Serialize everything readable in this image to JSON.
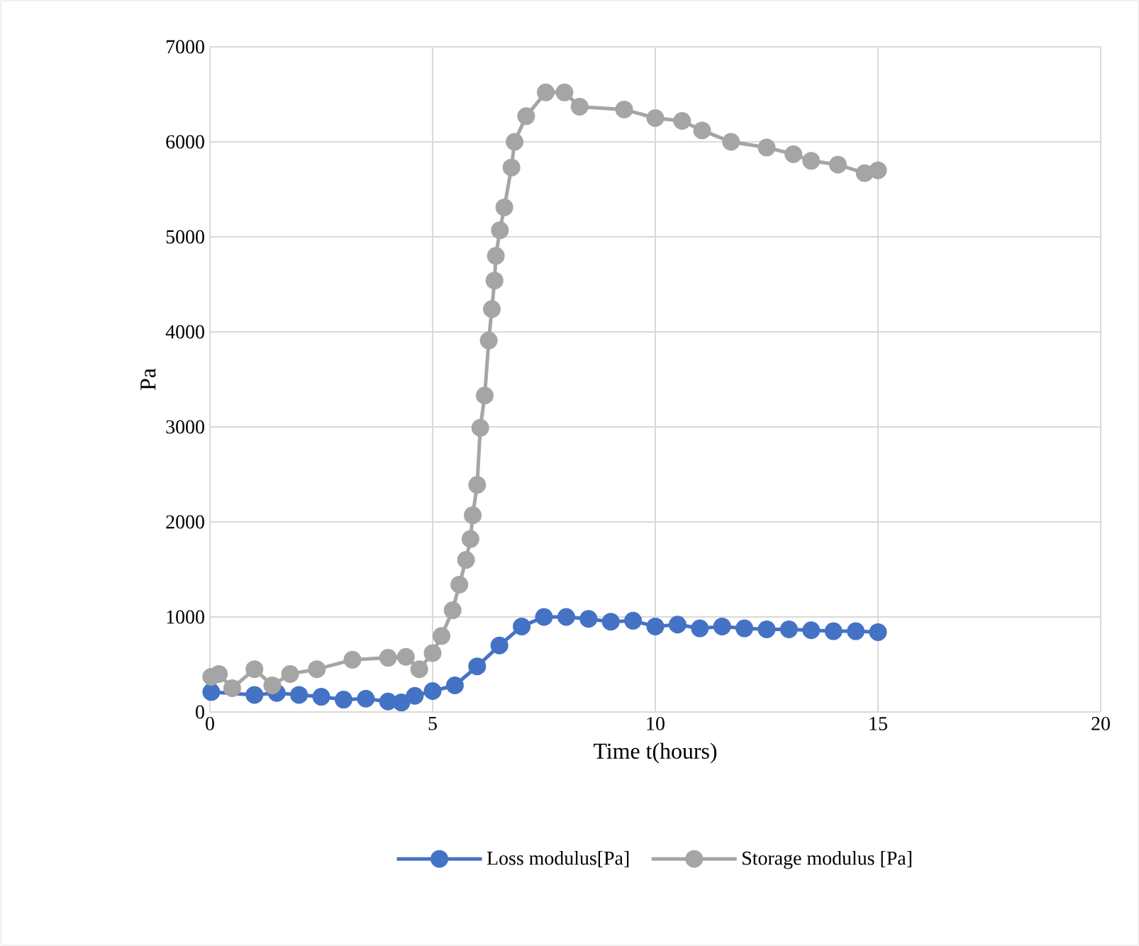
{
  "chart_data": {
    "type": "line",
    "xlabel": "Time t(hours)",
    "ylabel": "Pa",
    "xlim": [
      0,
      20
    ],
    "ylim": [
      0,
      7000
    ],
    "xticks": [
      0,
      5,
      10,
      15,
      20
    ],
    "yticks": [
      0,
      1000,
      2000,
      3000,
      4000,
      5000,
      6000,
      7000
    ],
    "grid": true,
    "legend": "bottom",
    "marker": "circle",
    "line_style": "solid",
    "series": [
      {
        "name": "Loss modulus[Pa]",
        "color": "#4472c4",
        "x": [
          0.03,
          1,
          1.5,
          2,
          2.5,
          3,
          3.5,
          4,
          4.3,
          4.6,
          5,
          5.5,
          6,
          6.5,
          7,
          7.5,
          8,
          8.5,
          9,
          9.5,
          10,
          10.5,
          11,
          11.5,
          12,
          12.5,
          13,
          13.5,
          14,
          14.5,
          15
        ],
        "values": [
          210,
          180,
          200,
          180,
          160,
          130,
          140,
          110,
          100,
          170,
          220,
          280,
          480,
          700,
          900,
          1000,
          1000,
          980,
          950,
          960,
          900,
          920,
          880,
          900,
          880,
          870,
          870,
          860,
          850,
          850,
          840
        ]
      },
      {
        "name": "Storage modulus [Pa]",
        "color": "#a5a5a5",
        "x": [
          0.03,
          0.2,
          0.5,
          1,
          1.4,
          1.8,
          2.4,
          3.2,
          4,
          4.4,
          4.7,
          5,
          5.2,
          5.45,
          5.6,
          5.75,
          5.85,
          5.9,
          6,
          6.07,
          6.17,
          6.26,
          6.33,
          6.39,
          6.42,
          6.51,
          6.61,
          6.77,
          6.84,
          7.1,
          7.54,
          7.96,
          8.3,
          9.3,
          10,
          10.6,
          11.05,
          11.7,
          12.5,
          13.1,
          13.5,
          14.1,
          14.7,
          15
        ],
        "values": [
          370,
          400,
          250,
          450,
          280,
          400,
          450,
          550,
          570,
          580,
          450,
          620,
          800,
          1070,
          1340,
          1600,
          1820,
          2070,
          2390,
          2990,
          3330,
          3910,
          4240,
          4540,
          4800,
          5070,
          5310,
          5730,
          6000,
          6270,
          6520,
          6520,
          6370,
          6340,
          6250,
          6220,
          6120,
          6000,
          5940,
          5870,
          5800,
          5760,
          5670,
          5700
        ]
      }
    ]
  }
}
